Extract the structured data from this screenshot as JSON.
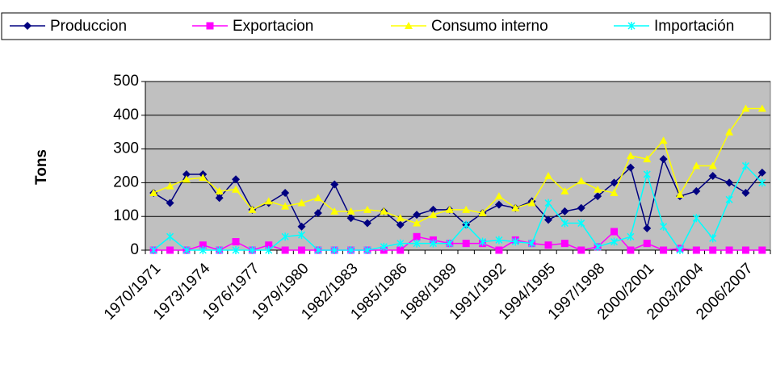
{
  "chart_data": {
    "type": "line",
    "y_label": "Tons",
    "categories": [
      "1970/1971",
      null,
      null,
      "1973/1974",
      null,
      null,
      "1976/1977",
      null,
      null,
      "1979/1980",
      null,
      null,
      "1982/1983",
      null,
      null,
      "1985/1986",
      null,
      null,
      "1988/1989",
      null,
      null,
      "1991/1992",
      null,
      null,
      "1994/1995",
      null,
      null,
      "1997/1998",
      null,
      null,
      "2000/2001",
      null,
      null,
      "2003/2004",
      null,
      null,
      "2006/2007",
      null
    ],
    "series": [
      {
        "name": "Produccion",
        "color": "#000080",
        "marker": "diamond",
        "values": [
          170,
          140,
          225,
          225,
          155,
          210,
          120,
          140,
          170,
          70,
          110,
          195,
          95,
          80,
          115,
          75,
          105,
          120,
          120,
          75,
          110,
          135,
          125,
          145,
          90,
          115,
          125,
          160,
          200,
          245,
          65,
          270,
          160,
          175,
          220,
          200,
          170,
          230
        ]
      },
      {
        "name": "Exportacion",
        "color": "#ff00ff",
        "marker": "square",
        "values": [
          0,
          0,
          0,
          15,
          0,
          25,
          0,
          15,
          0,
          0,
          0,
          0,
          0,
          0,
          0,
          0,
          40,
          30,
          20,
          20,
          20,
          0,
          30,
          20,
          15,
          20,
          0,
          10,
          55,
          0,
          20,
          0,
          5,
          0,
          0,
          0,
          0,
          0
        ]
      },
      {
        "name": "Consumo interno",
        "color": "#ffff00",
        "marker": "triangle",
        "values": [
          170,
          190,
          210,
          215,
          175,
          180,
          120,
          145,
          130,
          140,
          155,
          115,
          115,
          120,
          115,
          95,
          80,
          105,
          120,
          120,
          110,
          160,
          125,
          140,
          220,
          175,
          205,
          180,
          170,
          280,
          270,
          325,
          165,
          250,
          250,
          350,
          420,
          420
        ]
      },
      {
        "name": "Importación",
        "color": "#00ffff",
        "marker": "x",
        "values": [
          0,
          40,
          0,
          0,
          0,
          0,
          0,
          0,
          40,
          45,
          0,
          0,
          0,
          0,
          10,
          20,
          20,
          20,
          20,
          75,
          25,
          30,
          25,
          20,
          140,
          80,
          80,
          10,
          25,
          40,
          225,
          70,
          0,
          95,
          35,
          150,
          250,
          200
        ]
      }
    ],
    "ylim": [
      0,
      500
    ],
    "yticks": [
      0,
      100,
      200,
      300,
      400,
      500
    ],
    "grid": true,
    "plot_background": "#c0c0c0",
    "legend": "top"
  }
}
